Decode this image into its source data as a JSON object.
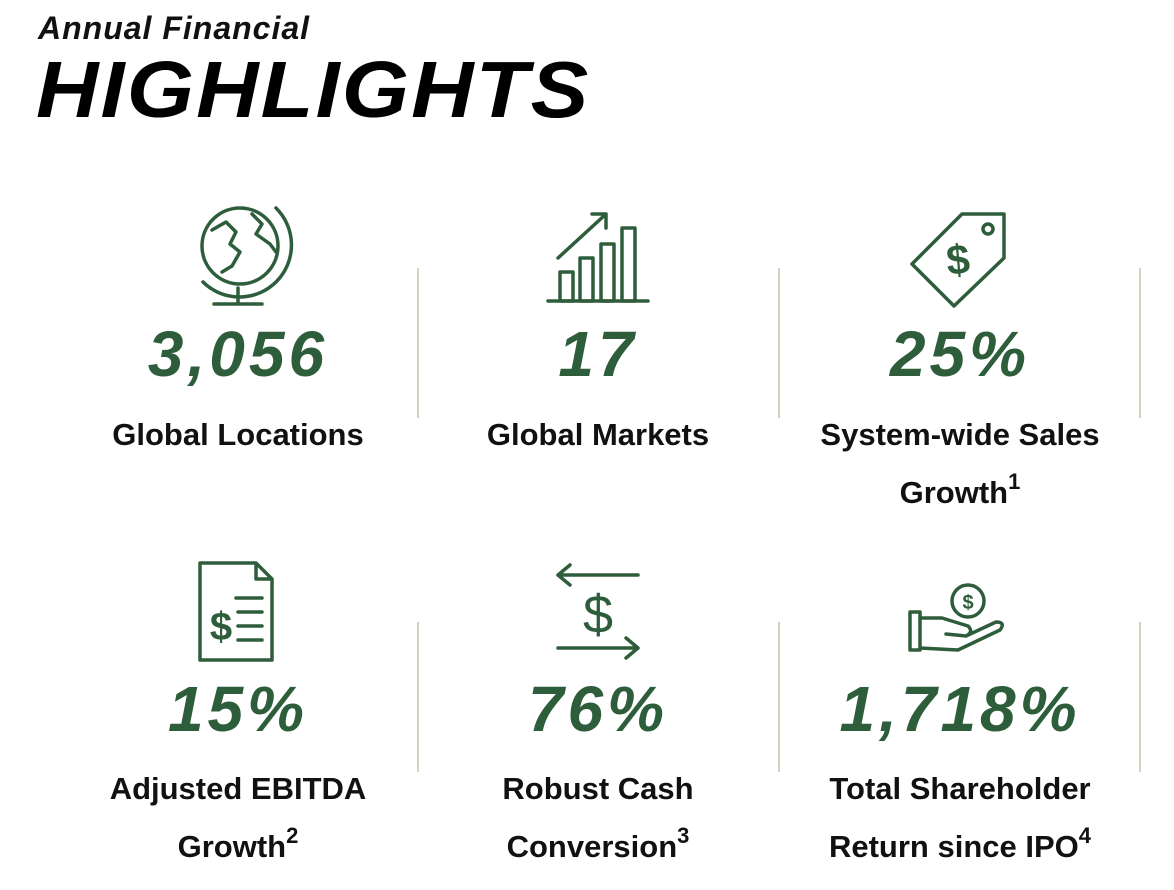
{
  "header": {
    "kicker": "Annual Financial",
    "title": "HIGHLIGHTS"
  },
  "stats": [
    {
      "value": "3,056",
      "label_lines": [
        "Global Locations"
      ]
    },
    {
      "value": "17",
      "label_lines": [
        "Global Markets"
      ]
    },
    {
      "value": "25%",
      "label_lines": [
        "System-wide Sales",
        "Growth"
      ],
      "note": "1"
    },
    {
      "value": "15%",
      "label_lines": [
        "Adjusted EBITDA",
        "Growth"
      ],
      "note": "2"
    },
    {
      "value": "76%",
      "label_lines": [
        "Robust Cash",
        "Conversion"
      ],
      "note": "3"
    },
    {
      "value": "1,718%",
      "label_lines": [
        "Total Shareholder",
        "Return since IPO"
      ],
      "note": "4"
    }
  ]
}
